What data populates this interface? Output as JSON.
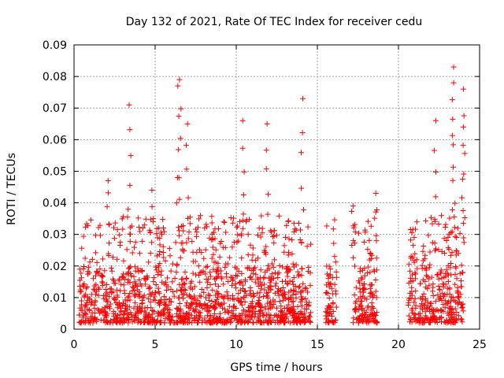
{
  "chart_data": {
    "type": "scatter",
    "title": "Day 132 of 2021, Rate Of TEC Index for receiver cedu",
    "xlabel": "GPS time / hours",
    "ylabel": "ROTI / TECUs",
    "xlim": [
      0,
      25
    ],
    "ylim": [
      0,
      0.09
    ],
    "x_ticks": [
      "0",
      "5",
      "10",
      "15",
      "20",
      "25"
    ],
    "y_ticks": [
      "0",
      "0.01",
      "0.02",
      "0.03",
      "0.04",
      "0.05",
      "0.06",
      "0.07",
      "0.08",
      "0.09"
    ],
    "grid": true,
    "marker": "+",
    "color": "#ff0000",
    "observed_time_ranges": [
      [
        0.3,
        14.6
      ],
      [
        15.5,
        16.2
      ],
      [
        17.2,
        18.7
      ],
      [
        20.6,
        24.0
      ]
    ],
    "notable_points": [
      {
        "x": 3.4,
        "y": 0.071
      },
      {
        "x": 6.5,
        "y": 0.079
      },
      {
        "x": 6.4,
        "y": 0.077
      },
      {
        "x": 7.0,
        "y": 0.065
      },
      {
        "x": 10.4,
        "y": 0.066
      },
      {
        "x": 11.9,
        "y": 0.065
      },
      {
        "x": 14.1,
        "y": 0.073
      },
      {
        "x": 23.4,
        "y": 0.083
      },
      {
        "x": 23.4,
        "y": 0.078
      },
      {
        "x": 24.0,
        "y": 0.076
      },
      {
        "x": 22.3,
        "y": 0.066
      },
      {
        "x": 24.0,
        "y": 0.064
      },
      {
        "x": 18.6,
        "y": 0.043
      },
      {
        "x": 17.2,
        "y": 0.039
      },
      {
        "x": 4.8,
        "y": 0.044
      },
      {
        "x": 2.1,
        "y": 0.047
      }
    ],
    "typical_range": [
      0.002,
      0.02
    ]
  }
}
